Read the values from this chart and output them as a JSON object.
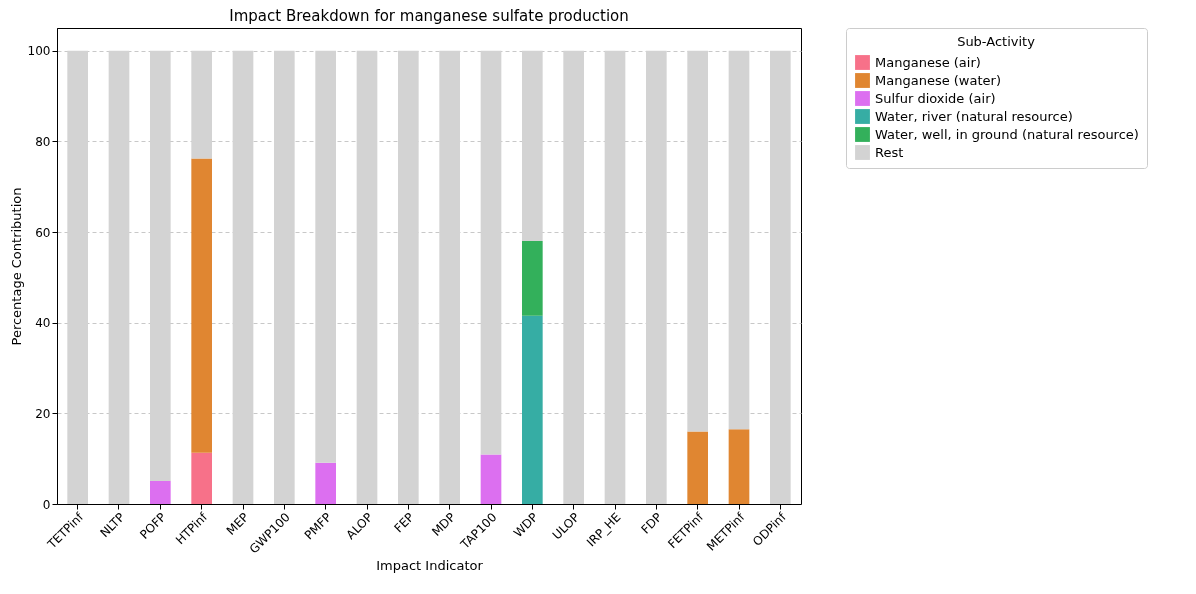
{
  "chart_data": {
    "type": "bar",
    "title": "Impact Breakdown for manganese sulfate production",
    "xlabel": "Impact Indicator",
    "ylabel": "Percentage Contribution",
    "legend_title": "Sub-Activity",
    "stacked": true,
    "grid": "y",
    "legend": "top right",
    "categories": [
      "TETPinf",
      "NLTP",
      "POFP",
      "HTPinf",
      "MEP",
      "GWP100",
      "PMFP",
      "ALOP",
      "FEP",
      "MDP",
      "TAP100",
      "WDP",
      "ULOP",
      "IRP_HE",
      "FDP",
      "FETPinf",
      "METPinf",
      "ODPinf"
    ],
    "ylim": [
      0,
      105
    ],
    "yticks": [
      0,
      20,
      40,
      60,
      80,
      100
    ],
    "series": [
      {
        "name": "Manganese (air)",
        "color": "#f77189",
        "values": [
          null,
          null,
          null,
          11.3,
          null,
          null,
          null,
          null,
          null,
          null,
          null,
          null,
          null,
          null,
          null,
          null,
          null,
          null
        ]
      },
      {
        "name": "Manganese (water)",
        "color": "#e08631",
        "values": [
          null,
          null,
          null,
          64.9,
          null,
          null,
          null,
          null,
          null,
          null,
          null,
          null,
          null,
          null,
          null,
          16.0,
          16.5,
          null
        ]
      },
      {
        "name": "Sulfur dioxide (air)",
        "color": "#dc6ff0",
        "values": [
          null,
          null,
          5.1,
          null,
          null,
          null,
          9.1,
          null,
          null,
          null,
          10.9,
          null,
          null,
          null,
          null,
          null,
          null,
          null
        ]
      },
      {
        "name": "Water, river (natural resource)",
        "color": "#36ada4",
        "values": [
          null,
          null,
          null,
          null,
          null,
          null,
          null,
          null,
          null,
          null,
          null,
          41.5,
          null,
          null,
          null,
          null,
          null,
          null
        ]
      },
      {
        "name": "Water, well, in ground (natural resource)",
        "color": "#33b05b",
        "values": [
          null,
          null,
          null,
          null,
          null,
          null,
          null,
          null,
          null,
          null,
          null,
          16.5,
          null,
          null,
          null,
          null,
          null,
          null
        ]
      },
      {
        "name": "Rest",
        "color": "#d3d3d3",
        "values": [
          100,
          100,
          94.9,
          23.8,
          100,
          100,
          90.9,
          100,
          100,
          100,
          89.1,
          42.0,
          100,
          100,
          100,
          84.0,
          83.5,
          100
        ]
      }
    ]
  }
}
